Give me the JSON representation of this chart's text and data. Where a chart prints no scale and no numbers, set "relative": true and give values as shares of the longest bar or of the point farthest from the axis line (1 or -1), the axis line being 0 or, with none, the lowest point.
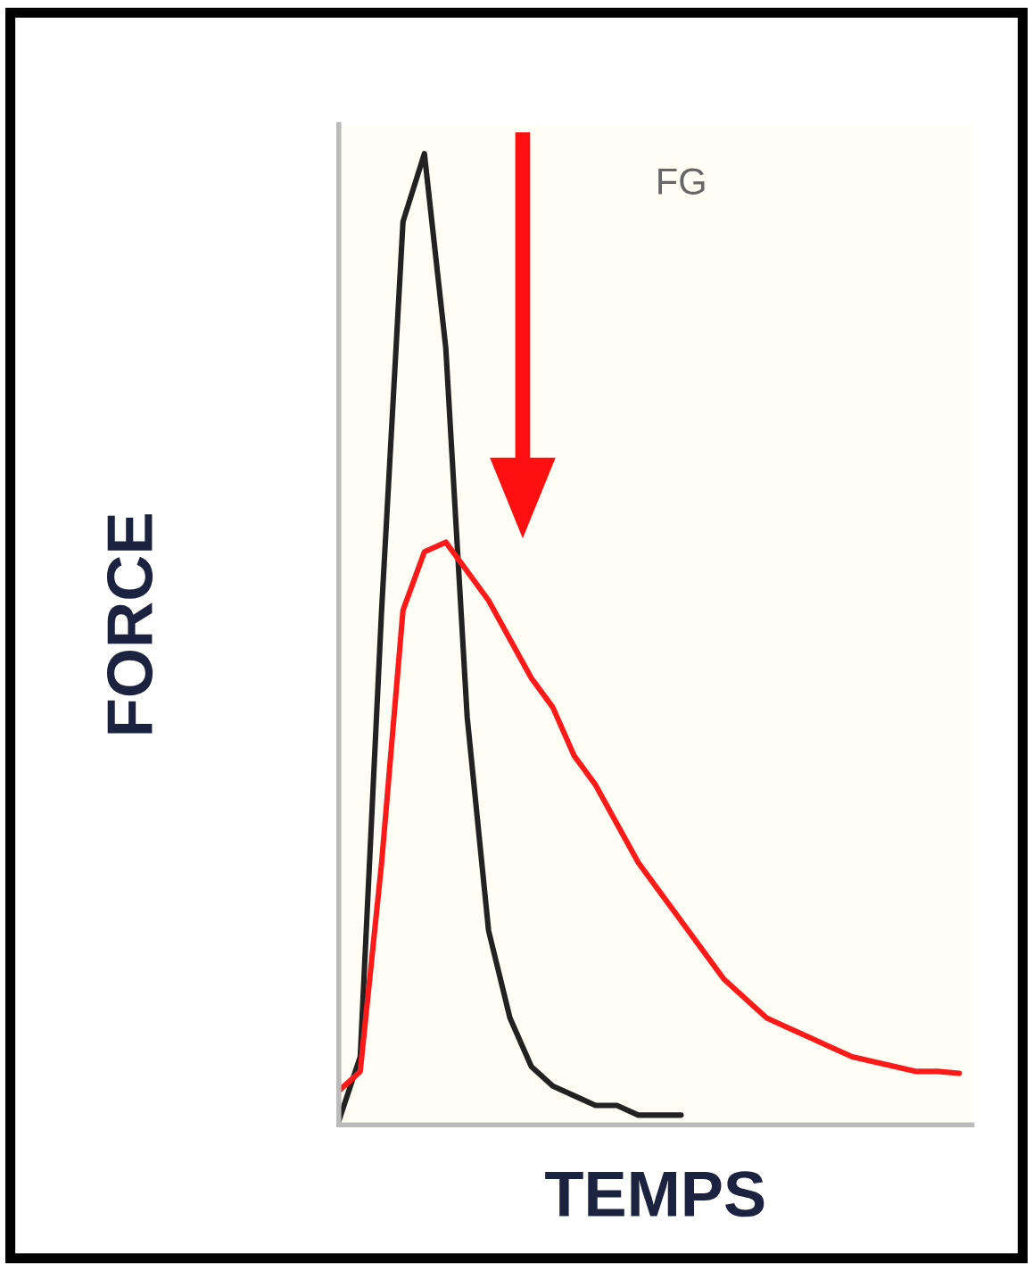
{
  "chart_data": {
    "type": "line",
    "relative": true,
    "xlabel": "TEMPS",
    "ylabel": "FORCE",
    "annotations": [
      "FG"
    ],
    "legend": false,
    "marker": "none",
    "line_style": "solid",
    "categories": [
      null,
      null,
      null,
      null,
      null,
      null,
      null,
      null,
      null,
      null,
      null,
      null,
      null,
      null,
      null,
      null,
      null,
      null,
      null,
      null,
      null,
      null,
      null,
      null,
      null,
      null,
      null,
      null,
      null,
      null
    ],
    "series": [
      {
        "color": "#222222",
        "values": [
          0.004,
          0.07,
          0.53,
          0.93,
          1.0,
          0.8,
          0.42,
          0.2,
          0.11,
          0.06,
          0.04,
          0.03,
          0.02,
          0.02,
          0.01,
          0.01,
          0.01,
          null,
          null,
          null,
          null,
          null,
          null,
          null,
          null,
          null,
          null,
          null,
          null,
          null
        ]
      },
      {
        "color": "#ff1a1a",
        "values": [
          0.035,
          0.055,
          0.27,
          0.53,
          0.59,
          0.6,
          0.57,
          0.54,
          0.5,
          0.46,
          0.43,
          0.38,
          0.35,
          0.31,
          0.27,
          0.24,
          0.21,
          0.18,
          0.15,
          0.13,
          0.11,
          0.1,
          0.09,
          0.08,
          0.07,
          0.065,
          0.06,
          0.055,
          0.055,
          0.053
        ]
      }
    ]
  }
}
